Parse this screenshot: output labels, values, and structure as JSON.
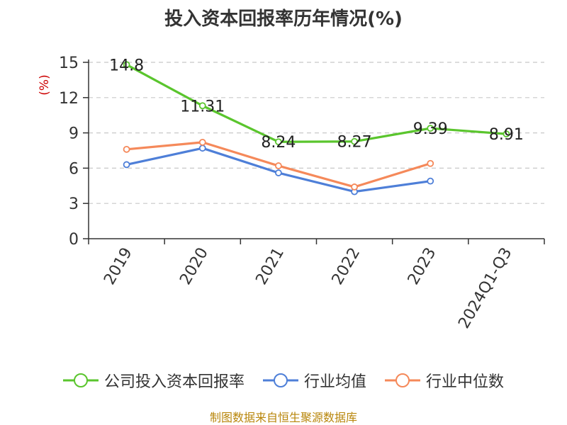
{
  "chart_data": {
    "type": "line",
    "title": "投入资本回报率历年情况(%)",
    "ylabel": "(%)",
    "xlabel": "",
    "categories": [
      "2019",
      "2020",
      "2021",
      "2022",
      "2023",
      "2024Q1-Q3"
    ],
    "ylim": [
      0,
      15
    ],
    "yticks": [
      0,
      3,
      6,
      9,
      12,
      15
    ],
    "grid": true,
    "legend_position": "bottom",
    "series": [
      {
        "name": "公司投入资本回报率",
        "color": "#5ac52d",
        "values": [
          14.8,
          11.31,
          8.24,
          8.27,
          9.39,
          8.91
        ],
        "labels": [
          "14.8",
          "11.31",
          "8.24",
          "8.27",
          "9.39",
          "8.91"
        ]
      },
      {
        "name": "行业均值",
        "color": "#4e7fd8",
        "values": [
          6.3,
          7.7,
          5.6,
          4.0,
          4.9,
          null
        ]
      },
      {
        "name": "行业中位数",
        "color": "#f5895a",
        "values": [
          7.6,
          8.2,
          6.2,
          4.4,
          6.4,
          null
        ]
      }
    ],
    "source": "制图数据来自恒生聚源数据库"
  }
}
